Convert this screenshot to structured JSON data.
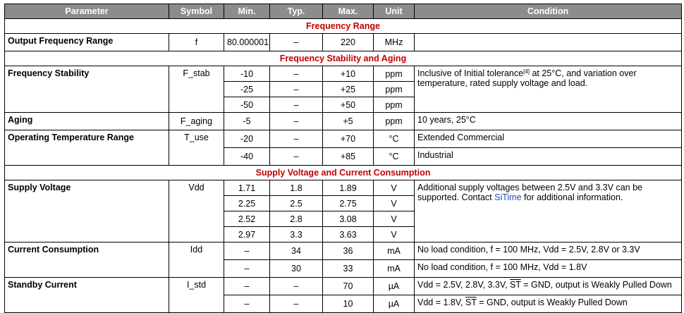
{
  "headers": {
    "parameter": "Parameter",
    "symbol": "Symbol",
    "min": "Min.",
    "typ": "Typ.",
    "max": "Max.",
    "unit": "Unit",
    "condition": "Condition"
  },
  "sections": {
    "frequency_range": "Frequency Range",
    "stability_aging": "Frequency Stability and Aging",
    "supply": "Supply Voltage and Current Consumption"
  },
  "output_freq": {
    "param": "Output Frequency Range",
    "symbol": "f",
    "min": "80.000001",
    "typ": "–",
    "max": "220",
    "unit": "MHz"
  },
  "freq_stability": {
    "param": "Frequency Stability",
    "symbol": "F_stab",
    "rows": [
      {
        "min": "-10",
        "typ": "–",
        "max": "+10",
        "unit": "ppm"
      },
      {
        "min": "-25",
        "typ": "–",
        "max": "+25",
        "unit": "ppm"
      },
      {
        "min": "-50",
        "typ": "–",
        "max": "+50",
        "unit": "ppm"
      }
    ],
    "cond_a": "Inclusive of Initial tolerance",
    "cond_ref": "[4]",
    "cond_b": " at 25°C, and variation over temperature, rated supply voltage and load."
  },
  "aging": {
    "param": "Aging",
    "symbol": "F_aging",
    "min": "-5",
    "typ": "–",
    "max": "+5",
    "unit": "ppm",
    "cond": "10 years, 25°C"
  },
  "op_temp": {
    "param": "Operating Temperature Range",
    "symbol": "T_use",
    "rows": [
      {
        "min": "-20",
        "typ": "–",
        "max": "+70",
        "unit": "°C",
        "cond": "Extended Commercial"
      },
      {
        "min": "-40",
        "typ": "–",
        "max": "+85",
        "unit": "°C",
        "cond": "Industrial"
      }
    ]
  },
  "supply_voltage": {
    "param": "Supply Voltage",
    "symbol": "Vdd",
    "rows": [
      {
        "min": "1.71",
        "typ": "1.8",
        "max": "1.89",
        "unit": "V"
      },
      {
        "min": "2.25",
        "typ": "2.5",
        "max": "2.75",
        "unit": "V"
      },
      {
        "min": "2.52",
        "typ": "2.8",
        "max": "3.08",
        "unit": "V"
      },
      {
        "min": "2.97",
        "typ": "3.3",
        "max": "3.63",
        "unit": "V"
      }
    ],
    "cond_a": "Additional supply voltages between 2.5V and 3.3V can be supported. Contact ",
    "cond_link": "SiTime",
    "cond_b": " for additional information."
  },
  "current": {
    "param": "Current Consumption",
    "symbol": "Idd",
    "rows": [
      {
        "min": "–",
        "typ": "34",
        "max": "36",
        "unit": "mA",
        "cond": "No load condition, f = 100 MHz, Vdd = 2.5V, 2.8V or 3.3V"
      },
      {
        "min": "–",
        "typ": "30",
        "max": "33",
        "unit": "mA",
        "cond": "No load condition, f = 100 MHz, Vdd = 1.8V"
      }
    ]
  },
  "standby": {
    "param": "Standby Current",
    "symbol": "I_std",
    "rows": [
      {
        "min": "–",
        "typ": "–",
        "max": "70",
        "unit": "µA",
        "cond_a": "Vdd = 2.5V, 2.8V, 3.3V, ",
        "cond_st": "ST",
        "cond_b": " = GND, output is Weakly Pulled Down"
      },
      {
        "min": "–",
        "typ": "–",
        "max": "10",
        "unit": "µA",
        "cond_a": "Vdd = 1.8V, ",
        "cond_st": "ST",
        "cond_b": " = GND, output is Weakly Pulled Down"
      }
    ]
  }
}
